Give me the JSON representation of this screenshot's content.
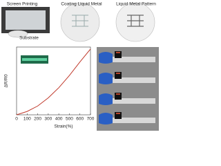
{
  "panels": {
    "screen_printing": "Screen Printing",
    "substrate": "Substrate",
    "coating": "Coating Liquid Metal",
    "pattern": "Liquid Metal Pattern"
  },
  "chart_data": {
    "type": "line",
    "x_label": "Strain(%)",
    "y_label": "ΔR/R0",
    "x": [
      0,
      100,
      200,
      300,
      400,
      500,
      600,
      700
    ],
    "series": [
      {
        "name": "ΔR/R0",
        "color": "#c0392b",
        "values": [
          0,
          0.05,
          0.13,
          0.25,
          0.4,
          0.58,
          0.78,
          0.97
        ]
      }
    ],
    "xlim": [
      0,
      700
    ],
    "xticks": [
      0,
      100,
      200,
      300,
      400,
      500,
      600,
      700
    ],
    "ylim": [
      0,
      1
    ]
  }
}
